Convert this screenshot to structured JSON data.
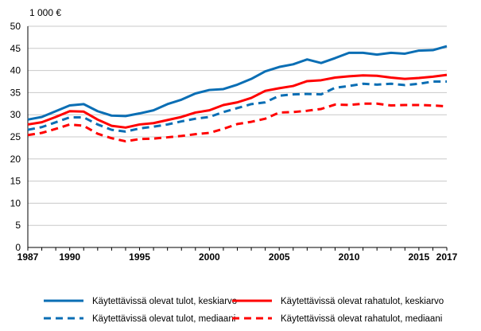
{
  "chart_data": {
    "type": "line",
    "unit_label": "1 000 €",
    "xlabel": "",
    "ylabel": "",
    "ylim": [
      0,
      50
    ],
    "yticks": [
      0,
      5,
      10,
      15,
      20,
      25,
      30,
      35,
      40,
      45,
      50
    ],
    "xlim": [
      1987,
      2017
    ],
    "xtick_labels": [
      "1987",
      "1990",
      "1995",
      "2000",
      "2005",
      "2010",
      "2015",
      "2017"
    ],
    "grid": true,
    "legend_position": "bottom",
    "x": [
      1987,
      1988,
      1989,
      1990,
      1991,
      1992,
      1993,
      1994,
      1995,
      1996,
      1997,
      1998,
      1999,
      2000,
      2001,
      2002,
      2003,
      2004,
      2005,
      2006,
      2007,
      2008,
      2009,
      2010,
      2011,
      2012,
      2013,
      2014,
      2015,
      2016,
      2017
    ],
    "series": [
      {
        "name": "Käytettävissä olevat tulot, keskiarvo",
        "color": "#0a6eb4",
        "dash": false,
        "values": [
          28.9,
          29.5,
          30.8,
          32.1,
          32.4,
          30.8,
          29.8,
          29.7,
          30.3,
          31.0,
          32.4,
          33.4,
          34.8,
          35.6,
          35.8,
          36.8,
          38.1,
          39.8,
          40.8,
          41.4,
          42.5,
          41.7,
          42.8,
          44.0,
          44.0,
          43.6,
          44.0,
          43.8,
          44.5,
          44.6,
          45.5
        ]
      },
      {
        "name": "Käytettävissä olevat rahatulot, keskiarvo",
        "color": "#ff0000",
        "dash": false,
        "values": [
          27.8,
          28.3,
          29.5,
          30.8,
          30.7,
          28.9,
          27.5,
          27.1,
          27.8,
          28.1,
          28.8,
          29.5,
          30.5,
          31.0,
          32.2,
          32.8,
          33.8,
          35.4,
          36.0,
          36.5,
          37.6,
          37.8,
          38.4,
          38.7,
          38.9,
          38.8,
          38.4,
          38.1,
          38.3,
          38.6,
          39.0
        ]
      },
      {
        "name": "Käytettävissä olevat tulot, mediaani",
        "color": "#0a6eb4",
        "dash": true,
        "values": [
          26.6,
          27.2,
          28.3,
          29.4,
          29.4,
          27.8,
          26.6,
          26.2,
          26.9,
          27.3,
          27.8,
          28.5,
          29.1,
          29.5,
          30.6,
          31.5,
          32.4,
          32.8,
          34.3,
          34.6,
          34.7,
          34.6,
          36.1,
          36.5,
          37.0,
          36.8,
          37.0,
          36.7,
          37.0,
          37.5,
          37.5
        ]
      },
      {
        "name": "Käytettävissä olevat rahatulot, mediaani",
        "color": "#ff0000",
        "dash": true,
        "values": [
          25.4,
          25.9,
          26.8,
          27.8,
          27.5,
          25.7,
          24.7,
          24.0,
          24.5,
          24.6,
          24.9,
          25.2,
          25.6,
          25.9,
          26.8,
          27.9,
          28.4,
          29.1,
          30.5,
          30.6,
          30.9,
          31.3,
          32.3,
          32.2,
          32.5,
          32.5,
          32.1,
          32.2,
          32.2,
          32.1,
          31.9
        ]
      }
    ]
  }
}
